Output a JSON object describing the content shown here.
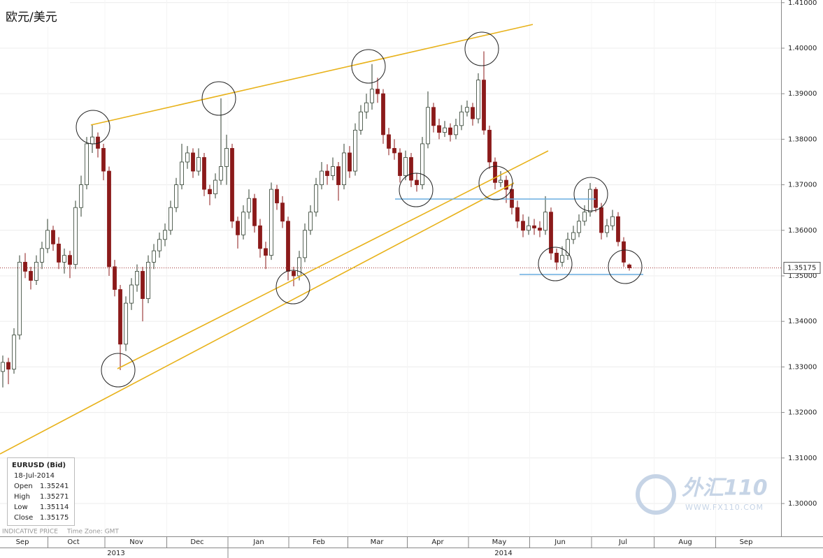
{
  "chart_data": {
    "type": "candlestick",
    "title": "欧元/美元",
    "x": [
      1,
      3,
      5,
      7,
      9,
      11,
      13,
      15,
      17,
      19,
      21,
      23,
      25,
      27,
      29,
      31,
      33,
      35,
      37,
      39,
      41,
      43,
      45,
      47,
      49,
      51,
      53,
      55,
      57,
      59,
      61,
      63,
      65,
      67,
      69,
      71,
      73,
      75,
      77,
      79,
      81,
      83,
      85,
      87,
      89,
      91,
      93,
      95,
      97,
      99,
      101,
      103,
      105,
      107,
      109,
      111,
      113,
      115,
      117,
      119,
      121,
      123,
      125,
      127,
      129,
      131,
      133,
      135,
      137,
      139,
      141,
      143,
      145,
      147,
      149,
      151,
      153,
      155,
      157,
      159,
      161,
      163,
      165,
      167,
      169,
      171,
      173,
      175,
      177,
      179,
      181,
      183,
      185,
      187,
      189,
      191,
      193,
      195,
      197,
      199,
      201,
      203,
      205,
      207,
      209,
      211,
      213,
      215,
      217,
      219,
      221,
      223,
      225
    ],
    "open": [
      1.329,
      1.331,
      1.3295,
      1.337,
      1.353,
      1.351,
      1.349,
      1.353,
      1.356,
      1.36,
      1.357,
      1.353,
      1.3545,
      1.3525,
      1.365,
      1.37,
      1.379,
      1.3805,
      1.378,
      1.373,
      1.352,
      1.347,
      1.335,
      1.344,
      1.348,
      1.351,
      1.345,
      1.353,
      1.3555,
      1.358,
      1.36,
      1.365,
      1.37,
      1.375,
      1.377,
      1.373,
      1.376,
      1.369,
      1.368,
      1.371,
      1.374,
      1.378,
      1.362,
      1.359,
      1.364,
      1.367,
      1.361,
      1.356,
      1.3545,
      1.369,
      1.366,
      1.362,
      1.351,
      1.35,
      1.354,
      1.36,
      1.364,
      1.37,
      1.373,
      1.372,
      1.374,
      1.37,
      1.377,
      1.373,
      1.382,
      1.386,
      1.388,
      1.391,
      1.39,
      1.381,
      1.378,
      1.377,
      1.372,
      1.376,
      1.371,
      1.37,
      1.379,
      1.387,
      1.383,
      1.3815,
      1.3825,
      1.381,
      1.383,
      1.386,
      1.387,
      1.3845,
      1.393,
      1.382,
      1.375,
      1.3705,
      1.371,
      1.369,
      1.365,
      1.362,
      1.36,
      1.361,
      1.3605,
      1.36,
      1.364,
      1.355,
      1.353,
      1.3545,
      1.358,
      1.3595,
      1.362,
      1.364,
      1.369,
      1.365,
      1.3595,
      1.361,
      1.363,
      1.3575,
      1.35241
    ],
    "high": [
      1.3325,
      1.332,
      1.3385,
      1.3545,
      1.355,
      1.352,
      1.3545,
      1.3575,
      1.3625,
      1.361,
      1.3585,
      1.356,
      1.3555,
      1.3665,
      1.372,
      1.3805,
      1.3833,
      1.3815,
      1.379,
      1.374,
      1.3535,
      1.348,
      1.3455,
      1.3495,
      1.3525,
      1.352,
      1.3545,
      1.357,
      1.3595,
      1.3615,
      1.3665,
      1.3715,
      1.379,
      1.3785,
      1.378,
      1.378,
      1.377,
      1.37,
      1.3725,
      1.389,
      1.381,
      1.379,
      1.363,
      1.3655,
      1.369,
      1.368,
      1.3625,
      1.3575,
      1.3705,
      1.37,
      1.3675,
      1.363,
      1.352,
      1.3555,
      1.3615,
      1.3655,
      1.3715,
      1.375,
      1.3745,
      1.376,
      1.375,
      1.379,
      1.3785,
      1.3835,
      1.3875,
      1.39,
      1.3965,
      1.3935,
      1.391,
      1.3825,
      1.38,
      1.378,
      1.3775,
      1.377,
      1.3725,
      1.3805,
      1.3905,
      1.388,
      1.3845,
      1.384,
      1.3835,
      1.3845,
      1.3875,
      1.3885,
      1.388,
      1.3945,
      1.3993,
      1.383,
      1.376,
      1.373,
      1.372,
      1.37,
      1.3665,
      1.3635,
      1.363,
      1.3625,
      1.362,
      1.3675,
      1.365,
      1.356,
      1.3565,
      1.3595,
      1.361,
      1.3635,
      1.3655,
      1.3704,
      1.3695,
      1.366,
      1.3625,
      1.3645,
      1.364,
      1.3585,
      1.35271
    ],
    "low": [
      1.3255,
      1.3262,
      1.3285,
      1.336,
      1.3495,
      1.347,
      1.348,
      1.3515,
      1.355,
      1.3555,
      1.3515,
      1.3505,
      1.3495,
      1.3515,
      1.363,
      1.369,
      1.377,
      1.376,
      1.371,
      1.35,
      1.3455,
      1.3293,
      1.3335,
      1.3425,
      1.3465,
      1.34,
      1.344,
      1.3515,
      1.354,
      1.3565,
      1.359,
      1.364,
      1.369,
      1.3735,
      1.3715,
      1.372,
      1.3675,
      1.3655,
      1.367,
      1.37,
      1.37,
      1.3605,
      1.356,
      1.358,
      1.3625,
      1.3595,
      1.354,
      1.3515,
      1.3535,
      1.3645,
      1.3605,
      1.349,
      1.3477,
      1.349,
      1.353,
      1.359,
      1.363,
      1.369,
      1.37,
      1.371,
      1.3665,
      1.369,
      1.3715,
      1.372,
      1.381,
      1.3845,
      1.3865,
      1.388,
      1.379,
      1.3765,
      1.3755,
      1.3705,
      1.371,
      1.3695,
      1.3685,
      1.369,
      1.378,
      1.3815,
      1.38,
      1.3805,
      1.3795,
      1.38,
      1.382,
      1.385,
      1.383,
      1.3835,
      1.381,
      1.3735,
      1.369,
      1.3695,
      1.366,
      1.3635,
      1.3605,
      1.3585,
      1.359,
      1.359,
      1.3585,
      1.359,
      1.3535,
      1.3513,
      1.352,
      1.3535,
      1.357,
      1.3585,
      1.361,
      1.363,
      1.364,
      1.358,
      1.3585,
      1.36,
      1.3565,
      1.352,
      1.35114
    ],
    "close": [
      1.331,
      1.3295,
      1.337,
      1.353,
      1.351,
      1.349,
      1.353,
      1.356,
      1.36,
      1.357,
      1.353,
      1.3545,
      1.3525,
      1.365,
      1.37,
      1.379,
      1.3805,
      1.378,
      1.373,
      1.352,
      1.347,
      1.335,
      1.344,
      1.348,
      1.351,
      1.345,
      1.353,
      1.3555,
      1.358,
      1.36,
      1.365,
      1.37,
      1.375,
      1.377,
      1.373,
      1.376,
      1.369,
      1.368,
      1.371,
      1.374,
      1.378,
      1.362,
      1.359,
      1.364,
      1.367,
      1.361,
      1.356,
      1.3545,
      1.369,
      1.366,
      1.362,
      1.351,
      1.35,
      1.354,
      1.36,
      1.364,
      1.37,
      1.373,
      1.372,
      1.374,
      1.37,
      1.377,
      1.373,
      1.382,
      1.386,
      1.388,
      1.391,
      1.39,
      1.381,
      1.378,
      1.377,
      1.372,
      1.376,
      1.371,
      1.37,
      1.379,
      1.387,
      1.383,
      1.3815,
      1.3825,
      1.381,
      1.383,
      1.386,
      1.387,
      1.3845,
      1.393,
      1.382,
      1.375,
      1.3705,
      1.371,
      1.369,
      1.365,
      1.362,
      1.36,
      1.361,
      1.3605,
      1.36,
      1.364,
      1.355,
      1.353,
      1.3545,
      1.358,
      1.3595,
      1.362,
      1.364,
      1.369,
      1.365,
      1.3595,
      1.361,
      1.363,
      1.3575,
      1.353,
      1.35175
    ],
    "up_color": "#2f3f2f",
    "down_color": "#8b1a1a",
    "last_price_color": "#a03030",
    "xlim": [
      0,
      279.25
    ],
    "xticks": [
      {
        "value": 8,
        "label": "Sep"
      },
      {
        "value": 26.25,
        "label": "Oct"
      },
      {
        "value": 48.75,
        "label": "Nov"
      },
      {
        "value": 70.5,
        "label": "Dec"
      },
      {
        "value": 92.5,
        "label": "Jan"
      },
      {
        "value": 114,
        "label": "Feb"
      },
      {
        "value": 134.75,
        "label": "Mar"
      },
      {
        "value": 156.5,
        "label": "Apr"
      },
      {
        "value": 178.5,
        "label": "May"
      },
      {
        "value": 200.25,
        "label": "Jun"
      },
      {
        "value": 222.75,
        "label": "Jul"
      },
      {
        "value": 245,
        "label": "Aug"
      },
      {
        "value": 266.75,
        "label": "Sep"
      }
    ],
    "year_ticks": [
      {
        "value": 41.5,
        "label": "2013"
      },
      {
        "value": 180,
        "label": "2014"
      }
    ],
    "ylim": [
      1.29279,
      1.41058
    ],
    "yticks": [
      {
        "value": 1.3,
        "label": "1.30000"
      },
      {
        "value": 1.31,
        "label": "1.31000"
      },
      {
        "value": 1.32,
        "label": "1.32000"
      },
      {
        "value": 1.33,
        "label": "1.33000"
      },
      {
        "value": 1.34,
        "label": "1.34000"
      },
      {
        "value": 1.35,
        "label": "1.35000"
      },
      {
        "value": 1.36,
        "label": "1.36000"
      },
      {
        "value": 1.37,
        "label": "1.37000"
      },
      {
        "value": 1.38,
        "label": "1.38000"
      },
      {
        "value": 1.39,
        "label": "1.39000"
      },
      {
        "value": 1.4,
        "label": "1.40000"
      },
      {
        "value": 1.41,
        "label": "1.41000"
      }
    ],
    "grid": true
  },
  "info": {
    "symbol": "EURUSD (Bid)",
    "date": "18-Jul-2014",
    "fields": [
      "Open",
      "High",
      "Low",
      "Close"
    ]
  },
  "footer": {
    "note": "INDICATIVE PRICE",
    "timezone": "Time Zone: GMT"
  },
  "watermark": {
    "brand": "外汇110",
    "url": "WWW.FX110.COM"
  }
}
